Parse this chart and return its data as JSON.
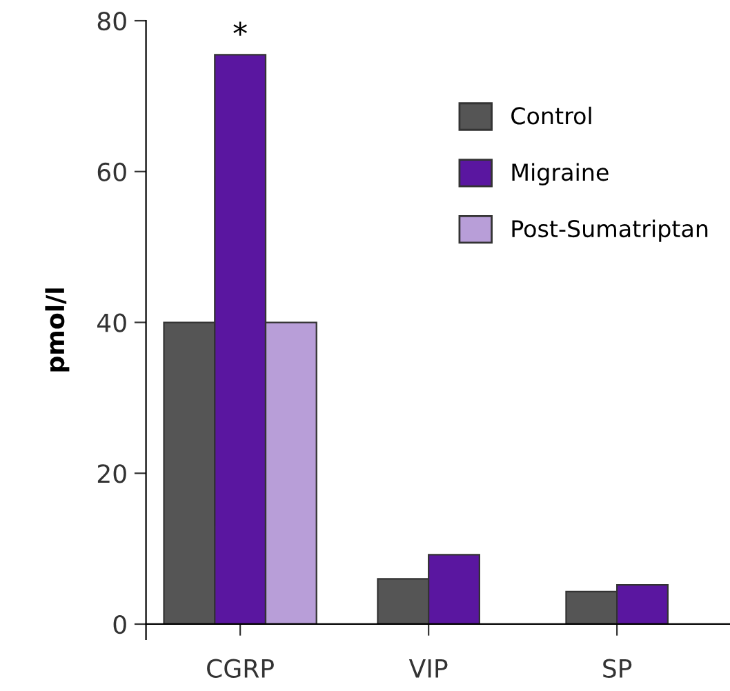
{
  "chart_data": {
    "type": "bar",
    "ylabel": "pmol/l",
    "categories": [
      "CGRP",
      "VIP",
      "SP"
    ],
    "series": [
      {
        "name": "Control",
        "color": "#555555",
        "values": [
          40,
          6.0,
          4.3
        ]
      },
      {
        "name": "Migraine",
        "color": "#5a16a0",
        "values": [
          75.5,
          9.2,
          5.2
        ]
      },
      {
        "name": "Post-Sumatriptan",
        "color": "#b89ed8",
        "values": [
          40,
          null,
          null
        ]
      }
    ],
    "ylim": [
      -2,
      80
    ],
    "yticks": [
      0,
      20,
      40,
      60,
      80
    ],
    "grid": false,
    "legend": "top right",
    "annotations": [
      {
        "text": "*",
        "x": "CGRP",
        "y": 75.5
      }
    ]
  }
}
